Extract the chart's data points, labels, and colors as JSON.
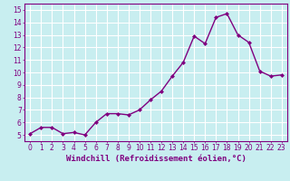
{
  "x": [
    0,
    1,
    2,
    3,
    4,
    5,
    6,
    7,
    8,
    9,
    10,
    11,
    12,
    13,
    14,
    15,
    16,
    17,
    18,
    19,
    20,
    21,
    22,
    23
  ],
  "y": [
    5.1,
    5.6,
    5.6,
    5.1,
    5.2,
    5.0,
    6.0,
    6.7,
    6.7,
    6.6,
    7.0,
    7.8,
    8.5,
    9.7,
    10.8,
    12.9,
    12.3,
    14.4,
    14.7,
    13.0,
    12.4,
    10.1,
    9.7,
    9.8
  ],
  "line_color": "#800080",
  "marker": "D",
  "marker_size": 2.0,
  "bg_color": "#c8eef0",
  "grid_color": "#ffffff",
  "xlabel": "Windchill (Refroidissement éolien,°C)",
  "xlim": [
    -0.5,
    23.5
  ],
  "ylim": [
    4.5,
    15.5
  ],
  "yticks": [
    5,
    6,
    7,
    8,
    9,
    10,
    11,
    12,
    13,
    14,
    15
  ],
  "xticks": [
    0,
    1,
    2,
    3,
    4,
    5,
    6,
    7,
    8,
    9,
    10,
    11,
    12,
    13,
    14,
    15,
    16,
    17,
    18,
    19,
    20,
    21,
    22,
    23
  ],
  "tick_fontsize": 5.5,
  "xlabel_fontsize": 6.5,
  "linewidth": 1.0
}
